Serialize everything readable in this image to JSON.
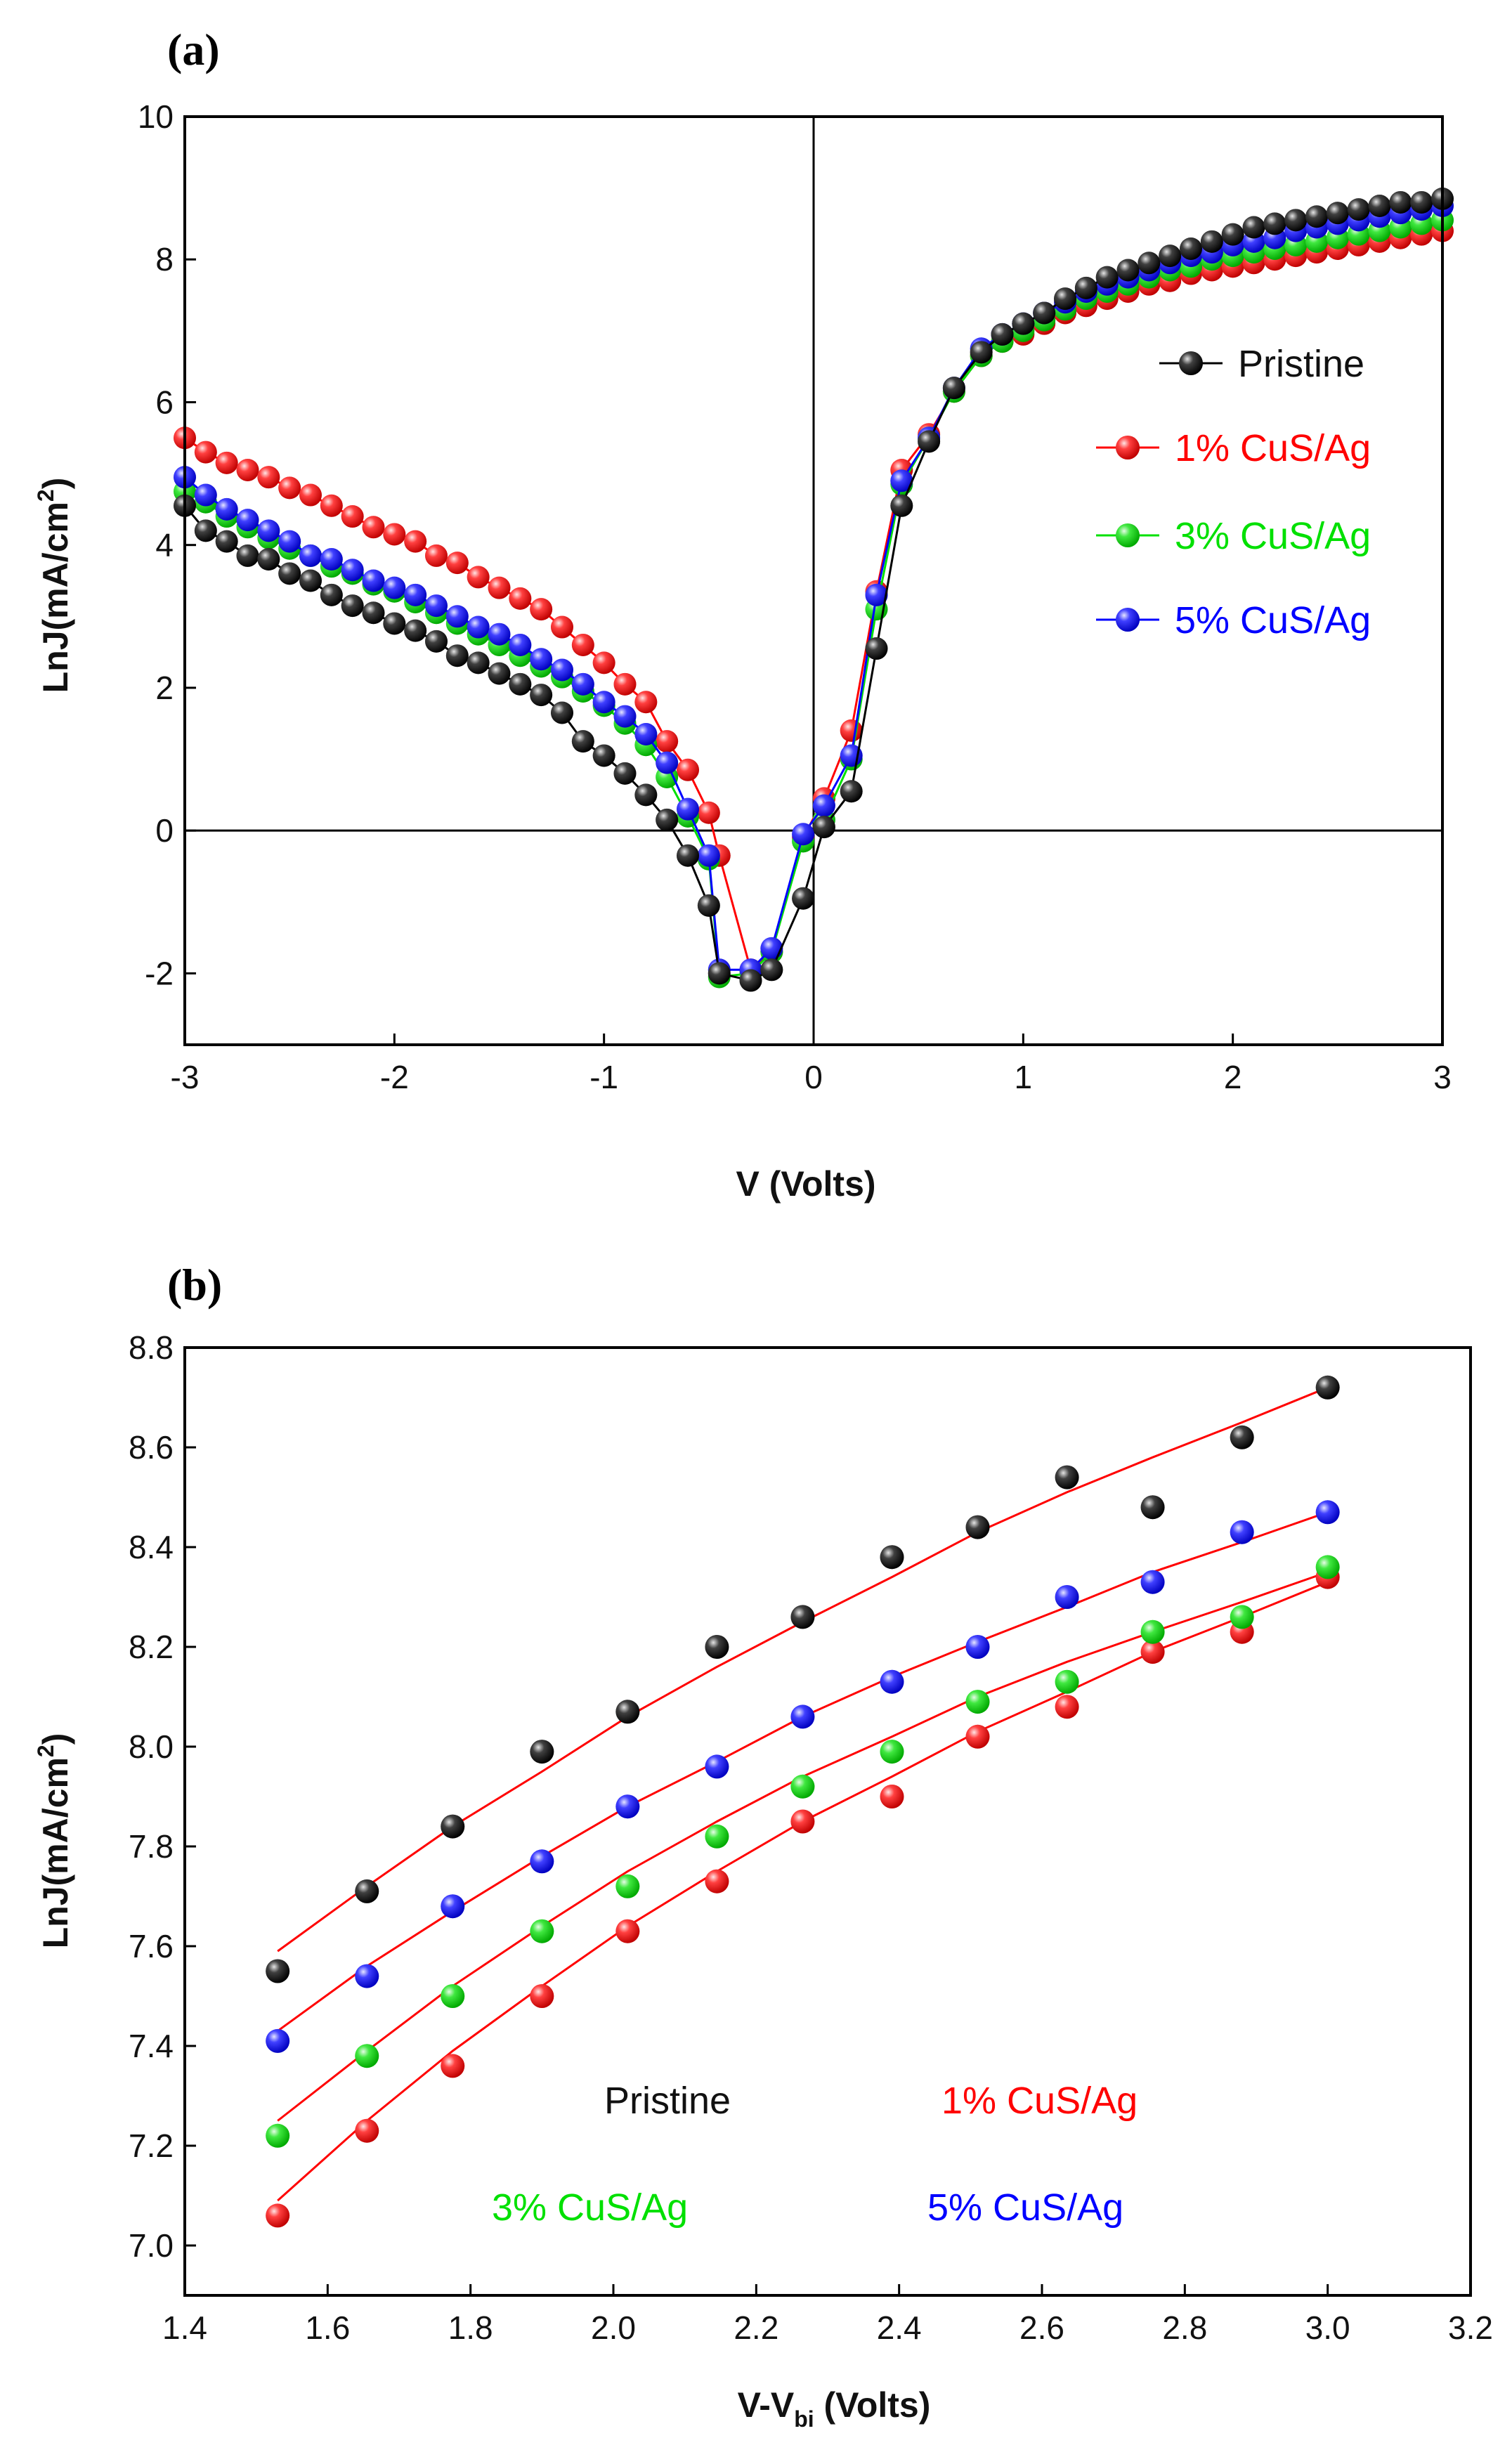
{
  "chart_data": [
    {
      "type": "scatter",
      "panel_label": "(a)",
      "xlabel": "V (Volts)",
      "ylabel": "LnJ(mA/cm",
      "ylabel_sup": "2",
      "ylabel_close": ")",
      "xlim": [
        -3,
        3
      ],
      "ylim": [
        -3,
        10
      ],
      "xticks": [
        "-3",
        "-2",
        "-1",
        "0",
        "1",
        "2",
        "3"
      ],
      "yticks": [
        "-2",
        "0",
        "2",
        "4",
        "6",
        "8",
        "10"
      ],
      "legend": [
        "Pristine",
        "1% CuS/Ag",
        "3% CuS/Ag",
        "5% CuS/Ag"
      ],
      "x": [
        -3.0,
        -2.9,
        -2.8,
        -2.7,
        -2.6,
        -2.5,
        -2.4,
        -2.3,
        -2.2,
        -2.1,
        -2.0,
        -1.9,
        -1.8,
        -1.7,
        -1.6,
        -1.5,
        -1.4,
        -1.3,
        -1.2,
        -1.1,
        -1.0,
        -0.9,
        -0.8,
        -0.7,
        -0.6,
        -0.5,
        -0.45,
        -0.3,
        -0.2,
        -0.05,
        0.05,
        0.18,
        0.3,
        0.42,
        0.55,
        0.67,
        0.8,
        0.9,
        1.0,
        1.1,
        1.2,
        1.3,
        1.4,
        1.5,
        1.6,
        1.7,
        1.8,
        1.9,
        2.0,
        2.1,
        2.2,
        2.3,
        2.4,
        2.5,
        2.6,
        2.7,
        2.8,
        2.9,
        3.0
      ],
      "series": [
        {
          "name": "Pristine",
          "color": "#000000",
          "values": [
            4.55,
            4.2,
            4.05,
            3.85,
            3.8,
            3.6,
            3.5,
            3.3,
            3.15,
            3.05,
            2.9,
            2.8,
            2.65,
            2.45,
            2.35,
            2.2,
            2.05,
            1.9,
            1.65,
            1.25,
            1.05,
            0.8,
            0.5,
            0.15,
            -0.35,
            -1.05,
            -2.0,
            -2.1,
            -1.95,
            -0.95,
            0.05,
            0.55,
            2.55,
            4.55,
            5.45,
            6.2,
            6.7,
            6.95,
            7.1,
            7.25,
            7.45,
            7.6,
            7.75,
            7.85,
            7.95,
            8.05,
            8.15,
            8.25,
            8.35,
            8.45,
            8.5,
            8.55,
            8.6,
            8.65,
            8.7,
            8.75,
            8.8,
            8.8,
            8.85
          ]
        },
        {
          "name": "1% CuS/Ag",
          "color": "#ff0000",
          "values": [
            5.5,
            5.3,
            5.15,
            5.05,
            4.95,
            4.8,
            4.7,
            4.55,
            4.4,
            4.25,
            4.15,
            4.05,
            3.85,
            3.75,
            3.55,
            3.4,
            3.25,
            3.1,
            2.85,
            2.6,
            2.35,
            2.05,
            1.8,
            1.25,
            0.85,
            0.25,
            -0.35,
            -1.95,
            -1.7,
            -0.1,
            0.45,
            1.4,
            3.35,
            5.05,
            5.55,
            6.15,
            6.65,
            6.85,
            6.95,
            7.1,
            7.25,
            7.35,
            7.45,
            7.55,
            7.65,
            7.7,
            7.8,
            7.85,
            7.9,
            7.95,
            8.0,
            8.05,
            8.1,
            8.15,
            8.2,
            8.25,
            8.3,
            8.35,
            8.4
          ]
        },
        {
          "name": "3% CuS/Ag",
          "color": "#00e000",
          "values": [
            4.75,
            4.6,
            4.4,
            4.25,
            4.1,
            3.95,
            3.85,
            3.7,
            3.6,
            3.45,
            3.35,
            3.2,
            3.05,
            2.9,
            2.75,
            2.6,
            2.45,
            2.3,
            2.15,
            1.95,
            1.75,
            1.5,
            1.2,
            0.75,
            0.2,
            -0.4,
            -2.05,
            -2.0,
            -1.7,
            -0.15,
            0.15,
            1.0,
            3.1,
            4.85,
            5.5,
            6.15,
            6.65,
            6.85,
            7.0,
            7.15,
            7.3,
            7.45,
            7.55,
            7.65,
            7.75,
            7.85,
            7.9,
            8.0,
            8.05,
            8.1,
            8.15,
            8.2,
            8.25,
            8.3,
            8.35,
            8.4,
            8.45,
            8.5,
            8.55
          ]
        },
        {
          "name": "5% CuS/Ag",
          "color": "#0000ff",
          "values": [
            4.95,
            4.7,
            4.5,
            4.35,
            4.2,
            4.05,
            3.85,
            3.8,
            3.65,
            3.5,
            3.4,
            3.3,
            3.15,
            3.0,
            2.85,
            2.75,
            2.6,
            2.4,
            2.25,
            2.05,
            1.8,
            1.6,
            1.35,
            0.95,
            0.3,
            -0.35,
            -1.95,
            -1.95,
            -1.65,
            -0.05,
            0.35,
            1.05,
            3.3,
            4.9,
            5.5,
            6.2,
            6.75,
            6.95,
            7.1,
            7.25,
            7.4,
            7.55,
            7.65,
            7.75,
            7.85,
            7.95,
            8.05,
            8.1,
            8.2,
            8.25,
            8.3,
            8.4,
            8.45,
            8.5,
            8.55,
            8.6,
            8.65,
            8.7,
            8.75
          ]
        }
      ]
    },
    {
      "type": "scatter",
      "panel_label": "(b)",
      "xlabel": "V-V",
      "xlabel_sub": "bi",
      "xlabel_close": " (Volts)",
      "ylabel": "LnJ(mA/cm",
      "ylabel_sup": "2",
      "ylabel_close": ")",
      "xlim": [
        1.4,
        3.2
      ],
      "ylim": [
        6.9,
        8.8
      ],
      "xticks": [
        "1.4",
        "1.6",
        "1.8",
        "2.0",
        "2.2",
        "2.4",
        "2.6",
        "2.8",
        "3.0",
        "3.2"
      ],
      "yticks": [
        "7.0",
        "7.2",
        "7.4",
        "7.6",
        "7.8",
        "8.0",
        "8.2",
        "8.4",
        "8.6",
        "8.8"
      ],
      "legend": [
        "Pristine",
        "1% CuS/Ag",
        "3% CuS/Ag",
        "5% CuS/Ag"
      ],
      "fit_color": "#ff0000",
      "x": [
        1.53,
        1.655,
        1.775,
        1.9,
        2.02,
        2.145,
        2.265,
        2.39,
        2.51,
        2.635,
        2.755,
        2.88,
        3.0
      ],
      "series": [
        {
          "name": "Pristine",
          "color": "#000000",
          "values": [
            7.55,
            7.71,
            7.84,
            7.99,
            8.07,
            8.2,
            8.26,
            8.38,
            8.44,
            8.54,
            8.48,
            8.62,
            8.72
          ],
          "fit": [
            7.59,
            7.72,
            7.84,
            7.95,
            8.06,
            8.16,
            8.25,
            8.34,
            8.43,
            8.51,
            8.58,
            8.65,
            8.72
          ]
        },
        {
          "name": "1% CuS/Ag",
          "color": "#ff0000",
          "values": [
            7.06,
            7.23,
            7.36,
            7.5,
            7.63,
            7.73,
            7.85,
            7.9,
            8.02,
            8.08,
            8.19,
            8.23,
            8.34
          ],
          "fit": [
            7.09,
            7.25,
            7.39,
            7.52,
            7.64,
            7.75,
            7.85,
            7.94,
            8.03,
            8.11,
            8.19,
            8.26,
            8.33
          ]
        },
        {
          "name": "3% CuS/Ag",
          "color": "#00e000",
          "values": [
            7.22,
            7.38,
            7.5,
            7.63,
            7.72,
            7.82,
            7.92,
            7.99,
            8.09,
            8.13,
            8.23,
            8.26,
            8.36
          ],
          "fit": [
            7.25,
            7.39,
            7.52,
            7.64,
            7.75,
            7.85,
            7.94,
            8.02,
            8.1,
            8.17,
            8.23,
            8.29,
            8.35
          ]
        },
        {
          "name": "5% CuS/Ag",
          "color": "#0000ff",
          "values": [
            7.41,
            7.54,
            7.68,
            7.77,
            7.88,
            7.96,
            8.06,
            8.13,
            8.2,
            8.3,
            8.33,
            8.43,
            8.47
          ],
          "fit": [
            7.43,
            7.56,
            7.67,
            7.78,
            7.88,
            7.97,
            8.06,
            8.14,
            8.21,
            8.28,
            8.35,
            8.41,
            8.47
          ]
        }
      ]
    }
  ]
}
